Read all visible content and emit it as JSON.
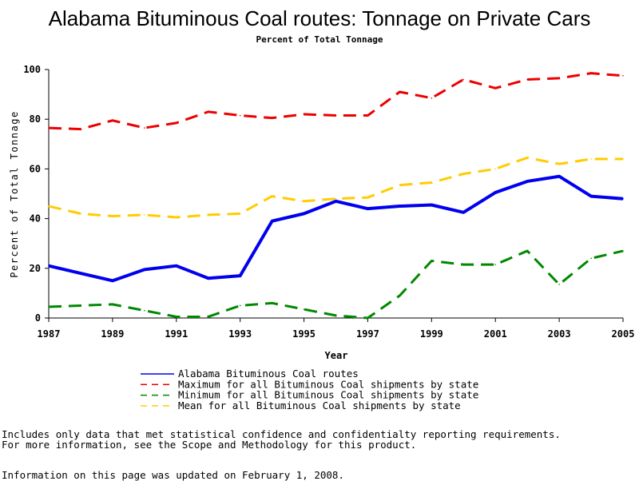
{
  "chart_data": {
    "type": "line",
    "title": "Alabama Bituminous Coal routes: Tonnage on Private Cars",
    "subtitle": "Percent of Total Tonnage",
    "xlabel": "Year",
    "ylabel": "Percent of Total Tonnage",
    "xlim": [
      1987,
      2005
    ],
    "ylim": [
      0,
      100
    ],
    "x_ticks": [
      "1987",
      "1989",
      "1991",
      "1993",
      "1995",
      "1997",
      "1999",
      "2001",
      "2003",
      "2005"
    ],
    "y_ticks": [
      "0",
      "20",
      "40",
      "60",
      "80",
      "100"
    ],
    "x": [
      1987,
      1988,
      1989,
      1990,
      1991,
      1992,
      1993,
      1994,
      1995,
      1996,
      1997,
      1998,
      1999,
      2000,
      2001,
      2002,
      2003,
      2004,
      2005
    ],
    "grid": false,
    "legend_position": "bottom",
    "series": [
      {
        "name": "Alabama Bituminous Coal routes",
        "color": "#0000ee",
        "style": "solid",
        "values": [
          21,
          18,
          15,
          19.5,
          21,
          16,
          17,
          39,
          42,
          47,
          44,
          45,
          45.5,
          42.5,
          50.5,
          55,
          57,
          49,
          48
        ]
      },
      {
        "name": "Maximum for all Bituminous Coal shipments by state",
        "color": "#ee0000",
        "style": "dashed",
        "values": [
          76.5,
          76,
          79.5,
          76.5,
          78.5,
          83,
          81.5,
          80.5,
          82,
          81.5,
          81.5,
          91,
          88.5,
          96,
          92.5,
          96,
          96.5,
          98.5,
          97.5
        ]
      },
      {
        "name": "Minimum for all Bituminous Coal shipments by state",
        "color": "#008800",
        "style": "dashed",
        "values": [
          4.5,
          5,
          5.5,
          3,
          0.5,
          0.5,
          5,
          6,
          3.5,
          1,
          0,
          9,
          23,
          21.5,
          21.5,
          27,
          13.5,
          24,
          27
        ]
      },
      {
        "name": "Mean for all Bituminous Coal shipments by state",
        "color": "#ffcc00",
        "style": "dashed",
        "values": [
          45,
          42,
          41,
          41.5,
          40.5,
          41.5,
          42,
          49,
          47,
          48,
          48.5,
          53.5,
          54.5,
          58,
          60,
          64.5,
          62,
          64,
          64
        ]
      }
    ]
  },
  "notes": {
    "line1": "Includes only data that met statistical confidence and confidentialty reporting requirements.",
    "line2": "For more information, see the Scope and Methodology for this product.",
    "updated": "Information on this page was updated on February 1, 2008."
  }
}
